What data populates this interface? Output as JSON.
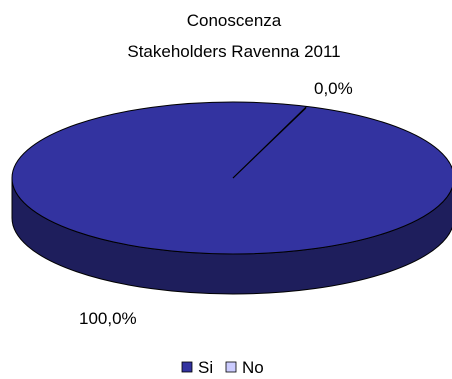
{
  "chart_data": {
    "type": "pie",
    "three_d": true,
    "title": [
      "Conoscenza",
      "Stakeholders Ravenna 2011"
    ],
    "slices": [
      {
        "label": "Si",
        "value": 100.0,
        "display": "100,0%",
        "color": "#3333a0",
        "side_color": "#1e1e5c"
      },
      {
        "label": "No",
        "value": 0.0,
        "display": "0,0%",
        "color": "#ccccff",
        "side_color": "#9999cc"
      }
    ],
    "legend_position": "bottom"
  }
}
